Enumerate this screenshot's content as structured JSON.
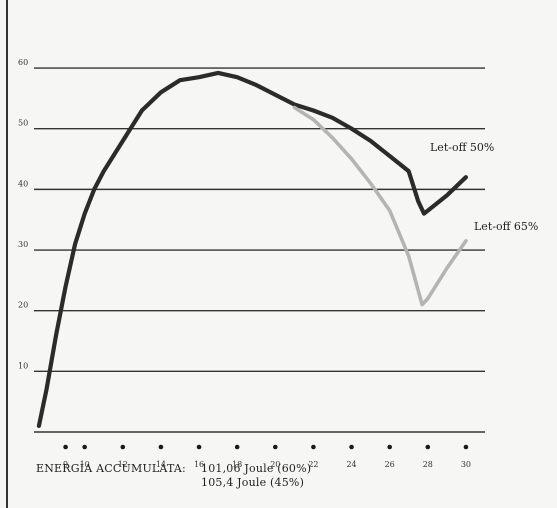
{
  "chart_data": {
    "type": "line",
    "title": "",
    "xlabel": "",
    "ylabel": "",
    "x_ticks": [
      9,
      10,
      12,
      14,
      16,
      18,
      20,
      22,
      24,
      26,
      28,
      30
    ],
    "y_ticks": [
      10,
      20,
      30,
      40,
      50,
      60
    ],
    "xlim": [
      7.5,
      31
    ],
    "ylim": [
      0,
      61
    ],
    "grid": "horizontal",
    "series": [
      {
        "name": "Let-off 50%",
        "color": "#2b2b2b",
        "points": [
          [
            7.6,
            1
          ],
          [
            8,
            7
          ],
          [
            8.5,
            16
          ],
          [
            9,
            24
          ],
          [
            9.5,
            31
          ],
          [
            10,
            36
          ],
          [
            10.5,
            40
          ],
          [
            11,
            43
          ],
          [
            12,
            48
          ],
          [
            13,
            53
          ],
          [
            14,
            56
          ],
          [
            15,
            58
          ],
          [
            16,
            58.5
          ],
          [
            17,
            59.2
          ],
          [
            18,
            58.5
          ],
          [
            19,
            57.2
          ],
          [
            20,
            55.6
          ],
          [
            21,
            54
          ],
          [
            22,
            53
          ],
          [
            23,
            51.8
          ],
          [
            24,
            50
          ],
          [
            25,
            48
          ],
          [
            26,
            45.5
          ],
          [
            27,
            43
          ],
          [
            27.5,
            38
          ],
          [
            27.8,
            36
          ],
          [
            28,
            36.5
          ],
          [
            29,
            39
          ],
          [
            30,
            42
          ]
        ]
      },
      {
        "name": "Let-off 65%",
        "color": "#b4b4b4",
        "points": [
          [
            21,
            53.5
          ],
          [
            22,
            51.5
          ],
          [
            23,
            48.5
          ],
          [
            24,
            45
          ],
          [
            25,
            41
          ],
          [
            26,
            36.5
          ],
          [
            27,
            29
          ],
          [
            27.7,
            21
          ],
          [
            28,
            22
          ],
          [
            29,
            27
          ],
          [
            30,
            31.5
          ]
        ]
      }
    ],
    "annotations": {
      "energy_label": "ENERGIA ACCUMULATA:",
      "energy_1": "101,06  Joule  (60%)",
      "energy_2": "105,4   Joule  (45%)"
    }
  }
}
